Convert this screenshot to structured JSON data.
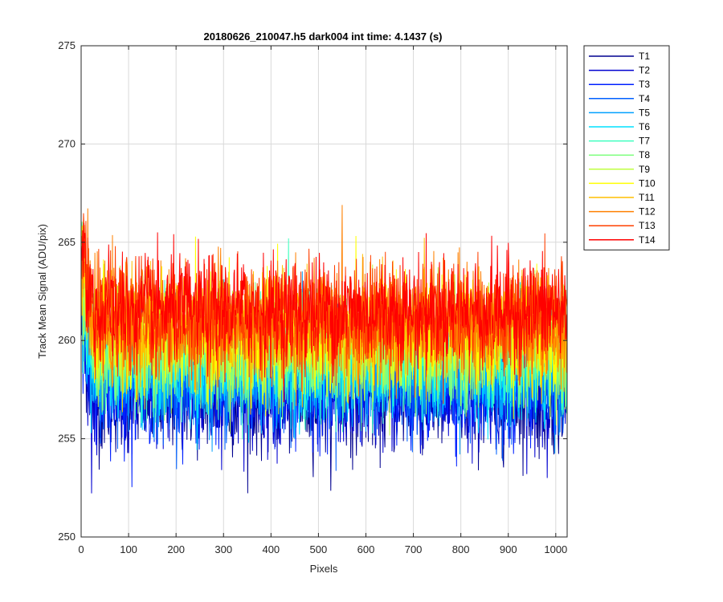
{
  "chart_data": {
    "type": "line",
    "title": "20180626_210047.h5  dark004   int time: 4.1437 (s)",
    "xlabel": "Pixels",
    "ylabel": "Track Mean Signal (ADU/pix)",
    "xlim": [
      0,
      1024
    ],
    "ylim": [
      250,
      275
    ],
    "xticks": [
      0,
      100,
      200,
      300,
      400,
      500,
      600,
      700,
      800,
      900,
      1000
    ],
    "yticks": [
      250,
      255,
      260,
      265,
      270,
      275
    ],
    "grid": true,
    "legend_position": "outside-top-right",
    "n_points": 1024,
    "series": [
      {
        "name": "T1",
        "color": "#00008F",
        "mean": 257.1,
        "spread": 1.4
      },
      {
        "name": "T2",
        "color": "#0000D0",
        "mean": 257.4,
        "spread": 1.4
      },
      {
        "name": "T3",
        "color": "#0020FF",
        "mean": 257.8,
        "spread": 1.4
      },
      {
        "name": "T4",
        "color": "#0060FF",
        "mean": 258.1,
        "spread": 1.4
      },
      {
        "name": "T5",
        "color": "#00A0FF",
        "mean": 258.5,
        "spread": 1.4
      },
      {
        "name": "T6",
        "color": "#00E0FF",
        "mean": 258.8,
        "spread": 1.4
      },
      {
        "name": "T7",
        "color": "#40FFBF",
        "mean": 259.2,
        "spread": 1.4
      },
      {
        "name": "T8",
        "color": "#80FF80",
        "mean": 259.5,
        "spread": 1.4
      },
      {
        "name": "T9",
        "color": "#BFFF40",
        "mean": 259.9,
        "spread": 1.4
      },
      {
        "name": "T10",
        "color": "#FFFF00",
        "mean": 260.3,
        "spread": 1.4
      },
      {
        "name": "T11",
        "color": "#FFBF00",
        "mean": 260.6,
        "spread": 1.4
      },
      {
        "name": "T12",
        "color": "#FF8000",
        "mean": 260.9,
        "spread": 1.4
      },
      {
        "name": "T13",
        "color": "#FF4000",
        "mean": 261.2,
        "spread": 1.4
      },
      {
        "name": "T14",
        "color": "#FF0000",
        "mean": 261.5,
        "spread": 1.4
      }
    ]
  }
}
